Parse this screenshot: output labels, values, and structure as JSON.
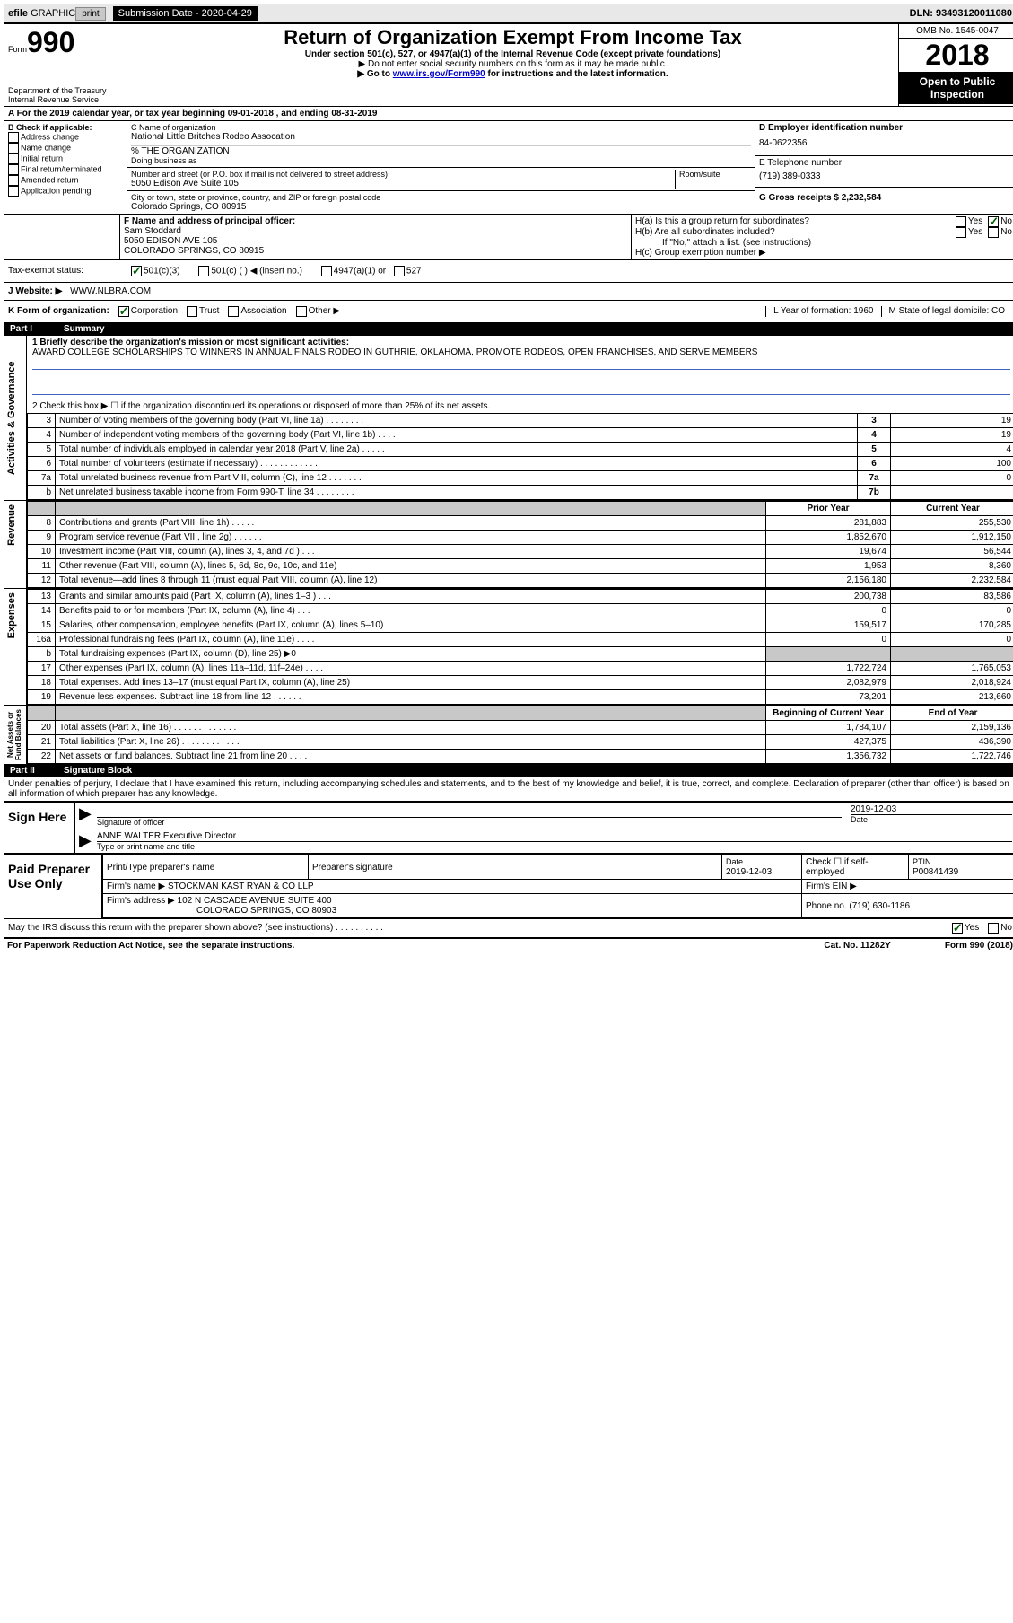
{
  "topbar": {
    "efile": "efile",
    "graphic": "GRAPHIC",
    "print": "print",
    "subdate_label": "Submission Date - 2020-04-29",
    "dln": "DLN: 93493120011080"
  },
  "header": {
    "form_prefix": "Form",
    "form_no": "990",
    "dept": "Department of the Treasury\nInternal Revenue Service",
    "title": "Return of Organization Exempt From Income Tax",
    "sub1": "Under section 501(c), 527, or 4947(a)(1) of the Internal Revenue Code (except private foundations)",
    "sub2": "▶ Do not enter social security numbers on this form as it may be made public.",
    "sub3_pre": "▶ Go to ",
    "sub3_link": "www.irs.gov/Form990",
    "sub3_post": " for instructions and the latest information.",
    "omb": "OMB No. 1545-0047",
    "year": "2018",
    "open": "Open to Public Inspection"
  },
  "line_a": "A   For the 2019 calendar year, or tax year beginning 09-01-2018    , and ending 08-31-2019",
  "block_b": {
    "label": "B Check if applicable:",
    "items": [
      "Address change",
      "Name change",
      "Initial return",
      "Final return/terminated",
      "Amended return",
      "Application pending"
    ],
    "c_label": "C Name of organization",
    "c_name": "National Little Britches Rodeo Assocation",
    "pct_org": "% THE ORGANIZATION",
    "dba": "Doing business as",
    "addr_label": "Number and street (or P.O. box if mail is not delivered to street address)",
    "room": "Room/suite",
    "addr": "5050 Edison Ave Suite 105",
    "city_label": "City or town, state or province, country, and ZIP or foreign postal code",
    "city": "Colorado Springs, CO   80915",
    "d_label": "D Employer identification number",
    "ein": "84-0622356",
    "e_label": "E Telephone number",
    "phone": "(719) 389-0333",
    "g_label": "G Gross receipts $ 2,232,584"
  },
  "block_f": {
    "f_label": "F  Name and address of principal officer:",
    "name": "Sam Stoddard",
    "addr1": "5050 EDISON AVE 105",
    "addr2": "COLORADO SPRINGS, CO   80915",
    "ha": "H(a)  Is this a group return for subordinates?",
    "hb": "H(b)  Are all subordinates included?",
    "hb_note": "If \"No,\" attach a list. (see instructions)",
    "hc": "H(c)  Group exemption number ▶"
  },
  "tax_status": {
    "label": "Tax-exempt status:",
    "c3": "501(c)(3)",
    "c_other": "501(c) (   ) ◀ (insert no.)",
    "a1": "4947(a)(1) or",
    "s527": "527"
  },
  "website": {
    "label": "J   Website: ▶",
    "value": "WWW.NLBRA.COM"
  },
  "line_k": {
    "label": "K Form of organization:",
    "corp": "Corporation",
    "trust": "Trust",
    "assoc": "Association",
    "other": "Other ▶",
    "l": "L Year of formation: 1960",
    "m": "M State of legal domicile: CO"
  },
  "part1": {
    "header_num": "Part I",
    "header_title": "Summary",
    "q1_label": "1  Briefly describe the organization's mission or most significant activities:",
    "q1_text": "AWARD COLLEGE SCHOLARSHIPS TO WINNERS IN ANNUAL FINALS RODEO IN GUTHRIE, OKLAHOMA, PROMOTE RODEOS, OPEN FRANCHISES, AND SERVE MEMBERS",
    "q2": "2   Check this box ▶ ☐  if the organization discontinued its operations or disposed of more than 25% of its net assets.",
    "rows_gov": [
      {
        "n": "3",
        "label": "Number of voting members of the governing body (Part VI, line 1a)   .    .    .    .    .    .    .    .",
        "box": "3",
        "val": "19"
      },
      {
        "n": "4",
        "label": "Number of independent voting members of the governing body (Part VI, line 1b)    .    .    .    .",
        "box": "4",
        "val": "19"
      },
      {
        "n": "5",
        "label": "Total number of individuals employed in calendar year 2018 (Part V, line 2a)   .    .    .    .    .",
        "box": "5",
        "val": "4"
      },
      {
        "n": "6",
        "label": "Total number of volunteers (estimate if necessary)    .    .    .    .    .    .    .    .    .    .    .    .",
        "box": "6",
        "val": "100"
      },
      {
        "n": "7a",
        "label": "Total unrelated business revenue from Part VIII, column (C), line 12   .    .    .    .    .    .    .",
        "box": "7a",
        "val": "0"
      },
      {
        "n": "b",
        "label": "Net unrelated business taxable income from Form 990-T, line 34    .    .    .    .    .    .    .    .",
        "box": "7b",
        "val": ""
      }
    ],
    "col_headers": {
      "prior": "Prior Year",
      "current": "Current Year"
    },
    "rows_rev": [
      {
        "n": "8",
        "label": "Contributions and grants (Part VIII, line 1h)    .    .    .    .    .    .",
        "p": "281,883",
        "c": "255,530"
      },
      {
        "n": "9",
        "label": "Program service revenue (Part VIII, line 2g)    .    .    .    .    .    .",
        "p": "1,852,670",
        "c": "1,912,150"
      },
      {
        "n": "10",
        "label": "Investment income (Part VIII, column (A), lines 3, 4, and 7d )    .    .    .",
        "p": "19,674",
        "c": "56,544"
      },
      {
        "n": "11",
        "label": "Other revenue (Part VIII, column (A), lines 5, 6d, 8c, 9c, 10c, and 11e)",
        "p": "1,953",
        "c": "8,360"
      },
      {
        "n": "12",
        "label": "Total revenue—add lines 8 through 11 (must equal Part VIII, column (A), line 12)",
        "p": "2,156,180",
        "c": "2,232,584"
      }
    ],
    "rows_exp": [
      {
        "n": "13",
        "label": "Grants and similar amounts paid (Part IX, column (A), lines 1–3 )   .    .    .",
        "p": "200,738",
        "c": "83,586"
      },
      {
        "n": "14",
        "label": "Benefits paid to or for members (Part IX, column (A), line 4)   .    .    .",
        "p": "0",
        "c": "0"
      },
      {
        "n": "15",
        "label": "Salaries, other compensation, employee benefits (Part IX, column (A), lines 5–10)",
        "p": "159,517",
        "c": "170,285"
      },
      {
        "n": "16a",
        "label": "Professional fundraising fees (Part IX, column (A), line 11e)   .    .    .    .",
        "p": "0",
        "c": "0"
      },
      {
        "n": "b",
        "label": "Total fundraising expenses (Part IX, column (D), line 25) ▶0",
        "p": "",
        "c": "",
        "grey": true
      },
      {
        "n": "17",
        "label": "Other expenses (Part IX, column (A), lines 11a–11d, 11f–24e)   .    .    .    .",
        "p": "1,722,724",
        "c": "1,765,053"
      },
      {
        "n": "18",
        "label": "Total expenses. Add lines 13–17 (must equal Part IX, column (A), line 25)",
        "p": "2,082,979",
        "c": "2,018,924"
      },
      {
        "n": "19",
        "label": "Revenue less expenses. Subtract line 18 from line 12 .    .    .    .    .    .",
        "p": "73,201",
        "c": "213,660"
      }
    ],
    "col_headers2": {
      "beg": "Beginning of Current Year",
      "end": "End of Year"
    },
    "rows_net": [
      {
        "n": "20",
        "label": "Total assets (Part X, line 16)  .    .    .    .    .    .    .    .    .    .    .    .    .",
        "p": "1,784,107",
        "c": "2,159,136"
      },
      {
        "n": "21",
        "label": "Total liabilities (Part X, line 26)  .    .    .    .    .    .    .    .    .    .    .    .",
        "p": "427,375",
        "c": "436,390"
      },
      {
        "n": "22",
        "label": "Net assets or fund balances. Subtract line 21 from line 20   .    .    .    .",
        "p": "1,356,732",
        "c": "1,722,746"
      }
    ],
    "vtab_gov": "Activities & Governance",
    "vtab_rev": "Revenue",
    "vtab_exp": "Expenses",
    "vtab_net": "Net Assets or Fund Balances"
  },
  "part2": {
    "header_num": "Part II",
    "header_title": "Signature Block",
    "penalty": "Under penalties of perjury, I declare that I have examined this return, including accompanying schedules and statements, and to the best of my knowledge and belief, it is true, correct, and complete. Declaration of preparer (other than officer) is based on all information of which preparer has any knowledge.",
    "sign_here": "Sign Here",
    "sig_officer": "Signature of officer",
    "sig_date": "2019-12-03",
    "sig_name": "ANNE WALTER  Executive Director",
    "type_name": "Type or print name and title",
    "paid": "Paid Preparer Use Only",
    "prep_name_label": "Print/Type preparer's name",
    "prep_sig_label": "Preparer's signature",
    "prep_date_label": "Date",
    "prep_date": "2019-12-03",
    "check_self": "Check ☐ if self-employed",
    "ptin_label": "PTIN",
    "ptin": "P00841439",
    "firm_name_label": "Firm's name     ▶",
    "firm_name": "STOCKMAN KAST RYAN & CO LLP",
    "firm_ein_label": "Firm's EIN ▶",
    "firm_addr_label": "Firm's address ▶",
    "firm_addr1": "102 N CASCADE AVENUE SUITE 400",
    "firm_addr2": "COLORADO SPRINGS, CO   80903",
    "firm_phone_label": "Phone no. (719) 630-1186",
    "discuss": "May the IRS discuss this return with the preparer shown above? (see instructions)   .    .    .    .    .    .    .    .    .    .",
    "yes": "Yes",
    "no": "No"
  },
  "footer": {
    "left": "For Paperwork Reduction Act Notice, see the separate instructions.",
    "mid": "Cat. No. 11282Y",
    "right": "Form 990 (2018)"
  }
}
